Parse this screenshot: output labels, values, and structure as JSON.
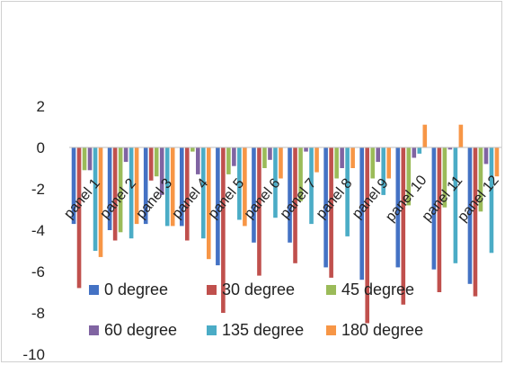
{
  "chart_data": {
    "type": "bar",
    "categories": [
      "panel 1",
      "panel 2",
      "panel 3",
      "panel 4",
      "panel 5",
      "panel 6",
      "panel 7",
      "panel 8",
      "panel 9",
      "panel 10",
      "panel 11",
      "panel 12"
    ],
    "series": [
      {
        "name": "0 degree",
        "color": "#4472c4",
        "values": [
          -3.7,
          -4.0,
          -3.7,
          -3.8,
          -5.7,
          -4.6,
          -4.6,
          -5.8,
          -6.4,
          -5.8,
          -5.9,
          -6.6
        ]
      },
      {
        "name": "30 degree",
        "color": "#c0504d",
        "values": [
          -6.8,
          -4.5,
          -1.6,
          -4.5,
          -8.0,
          -6.2,
          -5.6,
          -6.3,
          -8.5,
          -7.6,
          -7.0,
          -7.2
        ]
      },
      {
        "name": "45 degree",
        "color": "#9bbb59",
        "values": [
          -1.1,
          -4.1,
          -1.4,
          -0.2,
          -1.3,
          -1.0,
          -2.6,
          -1.5,
          -1.5,
          -2.8,
          -2.9,
          -3.1
        ]
      },
      {
        "name": "60 degree",
        "color": "#8064a2",
        "values": [
          -1.1,
          -0.7,
          -2.3,
          -1.3,
          -0.9,
          -0.6,
          -0.2,
          -1.0,
          -0.7,
          -0.5,
          -0.1,
          -0.8
        ]
      },
      {
        "name": "135 degree",
        "color": "#4bacc6",
        "values": [
          -5.0,
          -4.4,
          -3.8,
          -4.4,
          -3.5,
          -3.4,
          -3.7,
          -4.3,
          -2.3,
          -0.3,
          -5.6,
          -5.1
        ]
      },
      {
        "name": "180 degree",
        "color": "#f79646",
        "values": [
          -5.3,
          -3.7,
          -3.8,
          -5.4,
          -3.8,
          -1.5,
          -1.2,
          -1.0,
          -1.5,
          1.1,
          1.1,
          -1.4
        ]
      }
    ],
    "yticks": [
      "2",
      "0",
      "-2",
      "-4",
      "-6",
      "-8",
      "-10"
    ],
    "ylim": [
      -10,
      2
    ],
    "legend_position": "bottom-inside",
    "grid": false
  }
}
